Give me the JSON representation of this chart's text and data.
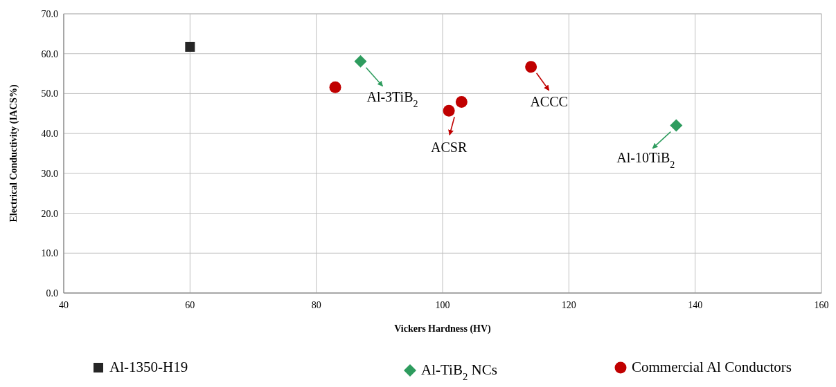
{
  "chart_data": {
    "type": "scatter",
    "xlabel": "Vickers Hardness (HV)",
    "ylabel": "Electrical Conductivity (IACS%)",
    "xlim": [
      40,
      160
    ],
    "xticks": [
      40,
      60,
      80,
      100,
      120,
      140,
      160
    ],
    "ylim": [
      0,
      70
    ],
    "yticks": [
      {
        "value": 0,
        "label": "0.0"
      },
      {
        "value": 10,
        "label": "10.0"
      },
      {
        "value": 20,
        "label": "20.0"
      },
      {
        "value": 30,
        "label": "30.0"
      },
      {
        "value": 40,
        "label": "40.0"
      },
      {
        "value": 50,
        "label": "50.0"
      },
      {
        "value": 60,
        "label": "60.0"
      },
      {
        "value": 70,
        "label": "70.0"
      }
    ],
    "grid": true,
    "legend": "bottom",
    "series": [
      {
        "name": "Al-1350-H19",
        "color": "#262626",
        "marker": "square",
        "x": [
          60
        ],
        "values": [
          61.7
        ]
      },
      {
        "name": "Al-TiB$_{2}$ NCs",
        "color": "#2e9c5e",
        "marker": "diamond",
        "x": [
          87,
          137
        ],
        "values": [
          58.1,
          42
        ]
      },
      {
        "name": "Commercial Al Conductors",
        "color": "#c00000",
        "marker": "circle",
        "x": [
          83,
          101,
          103,
          114
        ],
        "values": [
          51.6,
          45.7,
          47.9,
          56.7
        ]
      }
    ],
    "annotations": [
      {
        "text": "Al-3TiB$_{2}$",
        "x": 87,
        "y": 58.1
      },
      {
        "text": "ACSR",
        "x": 101,
        "y": 45.7
      },
      {
        "text": "ACCC",
        "x": 114,
        "y": 56.7
      },
      {
        "text": "Al-10TiB$_{2}$",
        "x": 137,
        "y": 42
      }
    ]
  }
}
